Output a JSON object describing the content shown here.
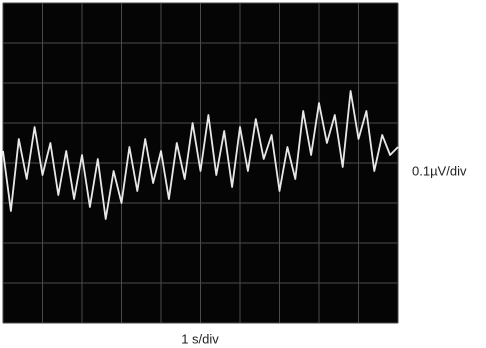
{
  "chart_data": {
    "type": "line",
    "y_label": "0.1µV/div",
    "x_label": "1 s/div",
    "x": [
      0,
      0.2,
      0.4,
      0.6,
      0.8,
      1,
      1.2,
      1.4,
      1.6,
      1.8,
      2,
      2.2,
      2.4,
      2.6,
      2.8,
      3,
      3.2,
      3.4,
      3.6,
      3.8,
      4,
      4.2,
      4.4,
      4.6,
      4.8,
      5,
      5.2,
      5.4,
      5.6,
      5.8,
      6,
      6.2,
      6.4,
      6.6,
      6.8,
      7,
      7.2,
      7.4,
      7.6,
      7.8,
      8,
      8.2,
      8.4,
      8.6,
      8.8,
      9,
      9.2,
      9.4,
      9.6,
      9.8,
      10
    ],
    "series": [
      {
        "color": "#e8e8e8",
        "values": [
          0.3,
          -1.2,
          0.6,
          -0.4,
          0.9,
          -0.3,
          0.5,
          -0.8,
          0.3,
          -0.9,
          0.2,
          -1.1,
          0.1,
          -1.4,
          -0.2,
          -1.0,
          0.4,
          -0.7,
          0.6,
          -0.5,
          0.3,
          -0.9,
          0.5,
          -0.4,
          1.0,
          -0.2,
          1.2,
          -0.3,
          0.8,
          -0.6,
          0.9,
          -0.2,
          1.1,
          0.1,
          0.7,
          -0.7,
          0.4,
          -0.4,
          1.3,
          0.2,
          1.5,
          0.5,
          1.2,
          -0.1,
          1.8,
          0.6,
          1.3,
          -0.2,
          0.7,
          0.2,
          0.4
        ]
      }
    ],
    "xlim": [
      0,
      10
    ],
    "ylim": [
      -4,
      4
    ],
    "xticks": [
      0,
      1,
      2,
      3,
      4,
      5,
      6,
      7,
      8,
      9,
      10
    ],
    "yticks": [
      -4,
      -3,
      -2,
      -1,
      0,
      1,
      2,
      3,
      4
    ],
    "grid": true,
    "background": "#050505",
    "grid_color": "#4a4a4a"
  }
}
